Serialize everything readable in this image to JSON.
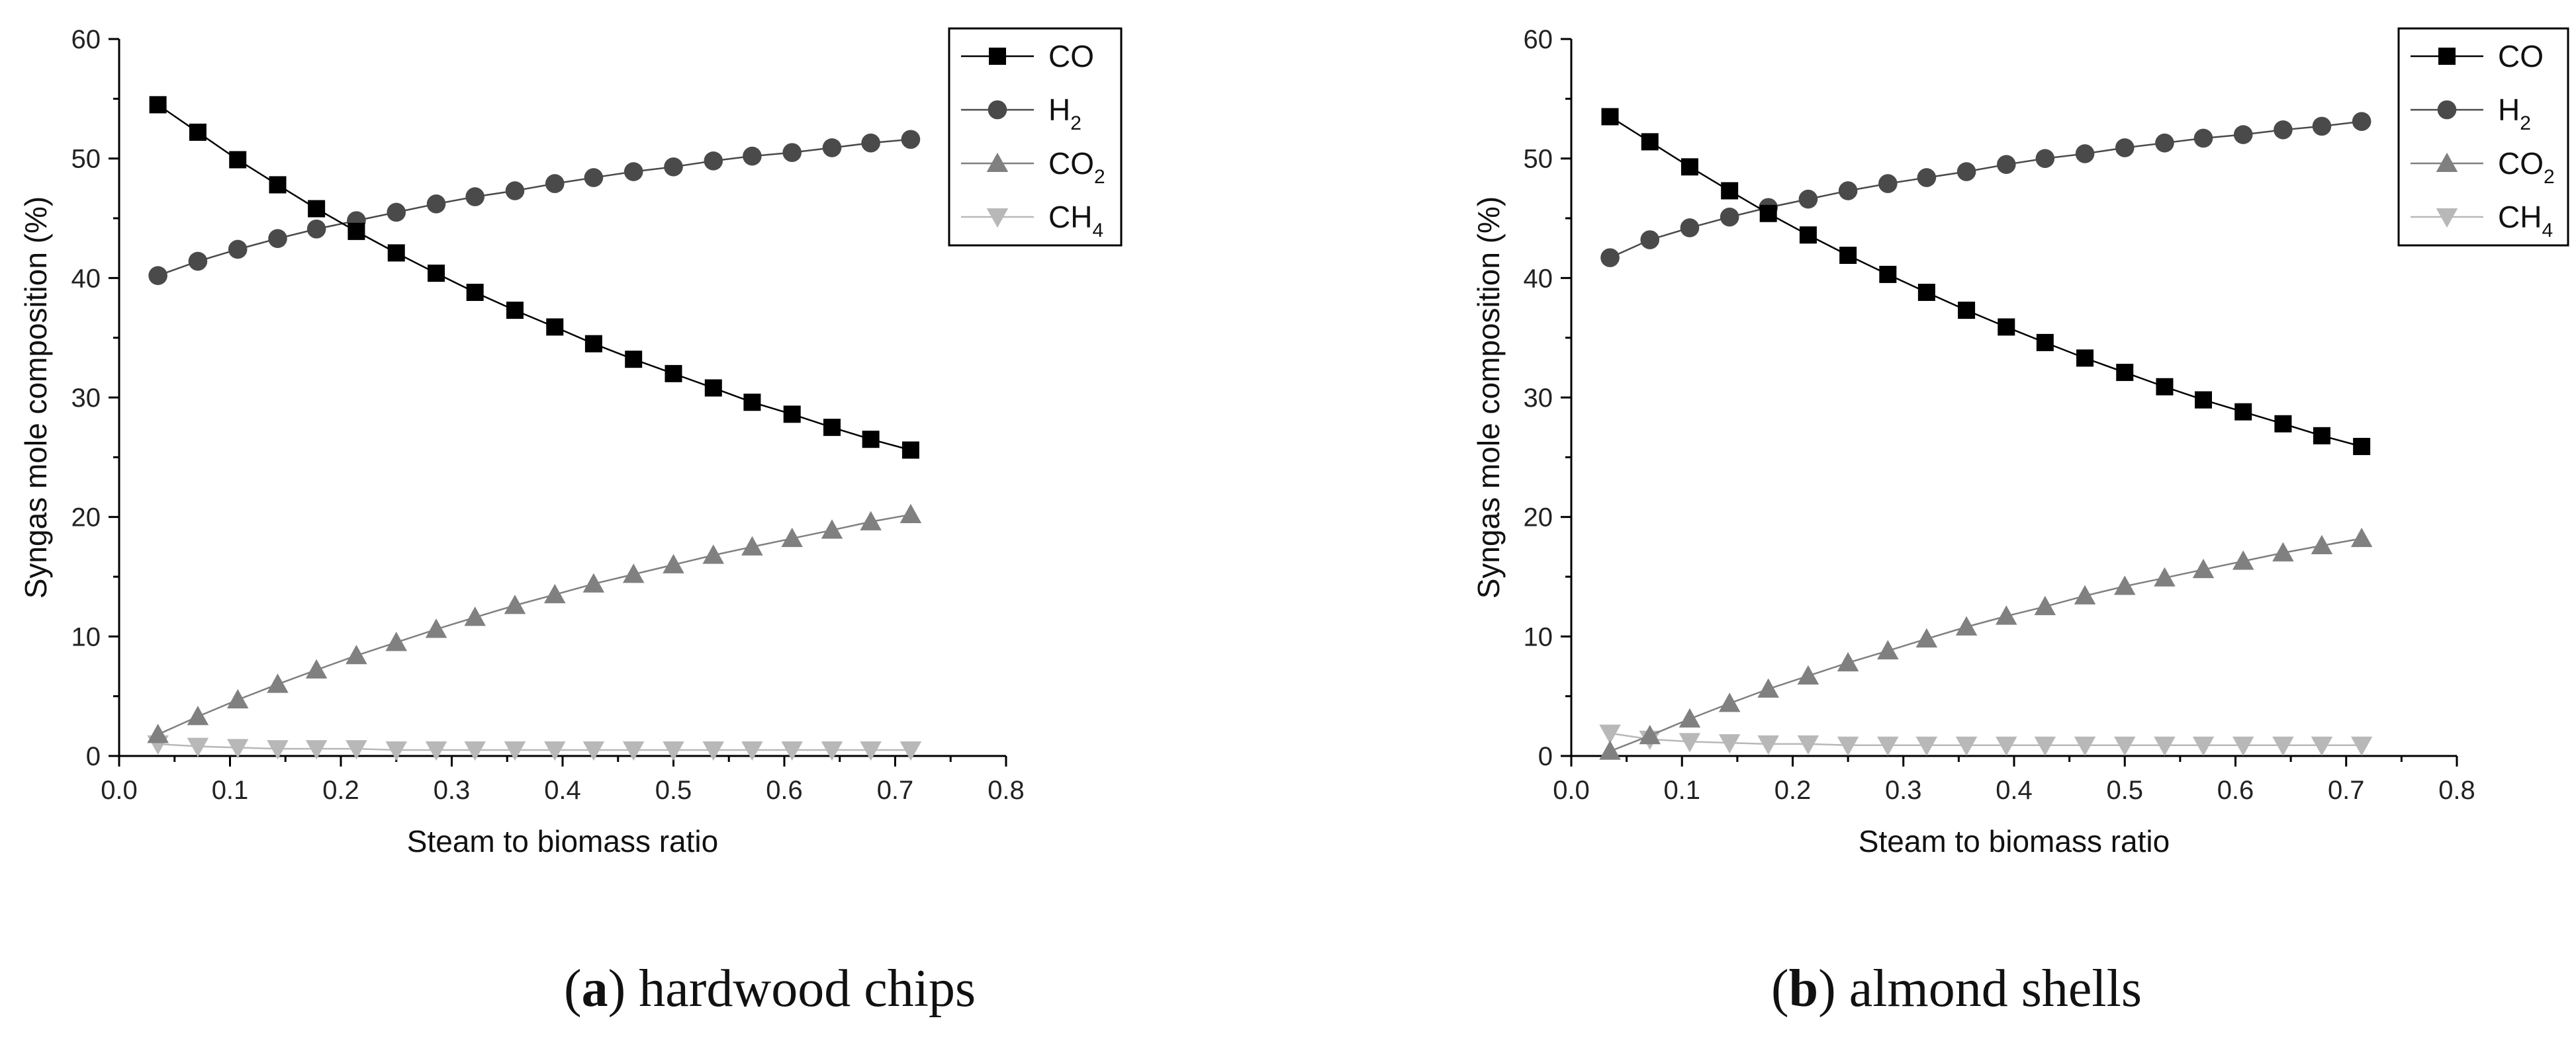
{
  "chart_data": [
    {
      "panel": "a",
      "type": "line",
      "caption_letter": "a",
      "caption_text": "hardwood chips",
      "xlabel": "Steam to biomass ratio",
      "ylabel": "Syngas mole composition (%)",
      "xlim": [
        0.0,
        0.8
      ],
      "ylim": [
        0,
        60
      ],
      "xticks": [
        "0.0",
        "0.1",
        "0.2",
        "0.3",
        "0.4",
        "0.5",
        "0.6",
        "0.7",
        "0.8"
      ],
      "yticks": [
        "0",
        "10",
        "20",
        "30",
        "40",
        "50",
        "60"
      ],
      "legend_position": "top-right",
      "x": [
        0.035,
        0.071,
        0.107,
        0.143,
        0.178,
        0.214,
        0.25,
        0.286,
        0.321,
        0.357,
        0.393,
        0.428,
        0.464,
        0.5,
        0.536,
        0.571,
        0.607,
        0.643,
        0.678,
        0.714
      ],
      "series": [
        {
          "name": "CO",
          "label_main": "CO",
          "label_sub": "",
          "marker": "square",
          "color": "#000000",
          "values": [
            54.5,
            52.2,
            49.9,
            47.8,
            45.8,
            43.9,
            42.1,
            40.4,
            38.8,
            37.3,
            35.9,
            34.5,
            33.2,
            32.0,
            30.8,
            29.6,
            28.6,
            27.5,
            26.5,
            25.6
          ]
        },
        {
          "name": "H2",
          "label_main": "H",
          "label_sub": "2",
          "marker": "circle",
          "color": "#4a4a4a",
          "values": [
            40.2,
            41.4,
            42.4,
            43.3,
            44.1,
            44.8,
            45.5,
            46.2,
            46.8,
            47.3,
            47.9,
            48.4,
            48.9,
            49.3,
            49.8,
            50.2,
            50.5,
            50.9,
            51.3,
            51.6
          ]
        },
        {
          "name": "CO2",
          "label_main": "CO",
          "label_sub": "2",
          "marker": "triangle-up",
          "color": "#808080",
          "values": [
            1.8,
            3.3,
            4.7,
            6.0,
            7.2,
            8.4,
            9.5,
            10.6,
            11.6,
            12.6,
            13.5,
            14.4,
            15.2,
            16.0,
            16.8,
            17.5,
            18.2,
            18.9,
            19.6,
            20.2
          ]
        },
        {
          "name": "CH4",
          "label_main": "CH",
          "label_sub": "4",
          "marker": "triangle-down",
          "color": "#b8b8b8",
          "values": [
            1.0,
            0.8,
            0.7,
            0.6,
            0.6,
            0.6,
            0.5,
            0.5,
            0.5,
            0.5,
            0.5,
            0.5,
            0.5,
            0.5,
            0.5,
            0.5,
            0.5,
            0.5,
            0.5,
            0.5
          ]
        }
      ]
    },
    {
      "panel": "b",
      "type": "line",
      "caption_letter": "b",
      "caption_text": "almond shells",
      "xlabel": "Steam to biomass ratio",
      "ylabel": "Syngas mole composition (%)",
      "xlim": [
        0.0,
        0.8
      ],
      "ylim": [
        0,
        60
      ],
      "xticks": [
        "0.0",
        "0.1",
        "0.2",
        "0.3",
        "0.4",
        "0.5",
        "0.6",
        "0.7",
        "0.8"
      ],
      "yticks": [
        "0",
        "10",
        "20",
        "30",
        "40",
        "50",
        "60"
      ],
      "legend_position": "top-right",
      "x": [
        0.035,
        0.071,
        0.107,
        0.143,
        0.178,
        0.214,
        0.25,
        0.286,
        0.321,
        0.357,
        0.393,
        0.428,
        0.464,
        0.5,
        0.536,
        0.571,
        0.607,
        0.643,
        0.678,
        0.714
      ],
      "series": [
        {
          "name": "CO",
          "label_main": "CO",
          "label_sub": "",
          "marker": "square",
          "color": "#000000",
          "values": [
            53.5,
            51.4,
            49.3,
            47.3,
            45.4,
            43.6,
            41.9,
            40.3,
            38.8,
            37.3,
            35.9,
            34.6,
            33.3,
            32.1,
            30.9,
            29.8,
            28.8,
            27.8,
            26.8,
            25.9
          ]
        },
        {
          "name": "H2",
          "label_main": "H",
          "label_sub": "2",
          "marker": "circle",
          "color": "#4a4a4a",
          "values": [
            41.7,
            43.2,
            44.2,
            45.1,
            45.9,
            46.6,
            47.3,
            47.9,
            48.4,
            48.9,
            49.5,
            50.0,
            50.4,
            50.9,
            51.3,
            51.7,
            52.0,
            52.4,
            52.7,
            53.1
          ]
        },
        {
          "name": "CO2",
          "label_main": "CO",
          "label_sub": "2",
          "marker": "triangle-up",
          "color": "#808080",
          "values": [
            0.4,
            1.7,
            3.1,
            4.4,
            5.6,
            6.7,
            7.8,
            8.8,
            9.8,
            10.8,
            11.7,
            12.5,
            13.4,
            14.2,
            14.9,
            15.6,
            16.3,
            17.0,
            17.6,
            18.2
          ]
        },
        {
          "name": "CH4",
          "label_main": "CH",
          "label_sub": "4",
          "marker": "triangle-down",
          "color": "#b8b8b8",
          "values": [
            1.9,
            1.4,
            1.2,
            1.1,
            1.0,
            1.0,
            0.9,
            0.9,
            0.9,
            0.9,
            0.9,
            0.9,
            0.9,
            0.9,
            0.9,
            0.9,
            0.9,
            0.9,
            0.9,
            0.9
          ]
        }
      ]
    }
  ]
}
